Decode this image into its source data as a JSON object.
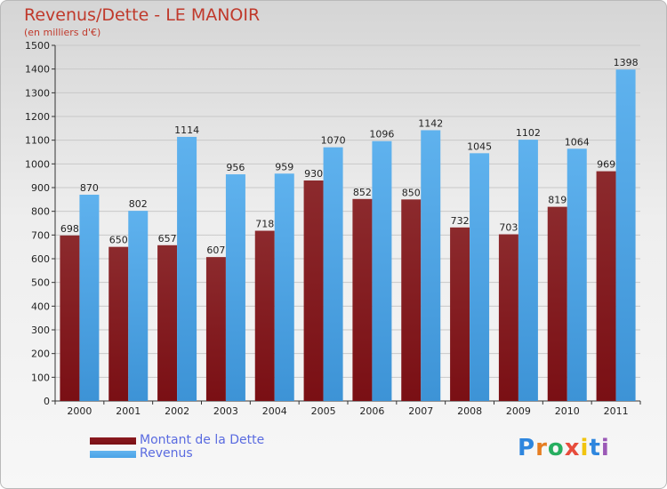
{
  "title": "Revenus/Dette - LE MANOIR",
  "subtitle": "(en milliers d'€)",
  "logo_text": "Proxiti",
  "colors": {
    "dette": "#7a0f14",
    "revenus": "#4aa3e6",
    "title": "#c0392b",
    "legend_text": "#5a6be0"
  },
  "chart_data": {
    "type": "bar",
    "title": "Revenus/Dette - LE MANOIR",
    "ylabel": "(en milliers d'€)",
    "xlabel": "",
    "categories": [
      "2000",
      "2001",
      "2002",
      "2003",
      "2004",
      "2005",
      "2006",
      "2007",
      "2008",
      "2009",
      "2010",
      "2011"
    ],
    "series": [
      {
        "name": "Montant de la Dette",
        "values": [
          698,
          650,
          657,
          607,
          718,
          930,
          852,
          850,
          732,
          703,
          819,
          969
        ]
      },
      {
        "name": "Revenus",
        "values": [
          870,
          802,
          1114,
          956,
          959,
          1070,
          1096,
          1142,
          1045,
          1102,
          1064,
          1398
        ]
      }
    ],
    "ylim": [
      0,
      1500
    ],
    "yticks": [
      0,
      100,
      200,
      300,
      400,
      500,
      600,
      700,
      800,
      900,
      1000,
      1100,
      1200,
      1300,
      1400,
      1500
    ],
    "grid": true,
    "legend": "bottom-left"
  }
}
